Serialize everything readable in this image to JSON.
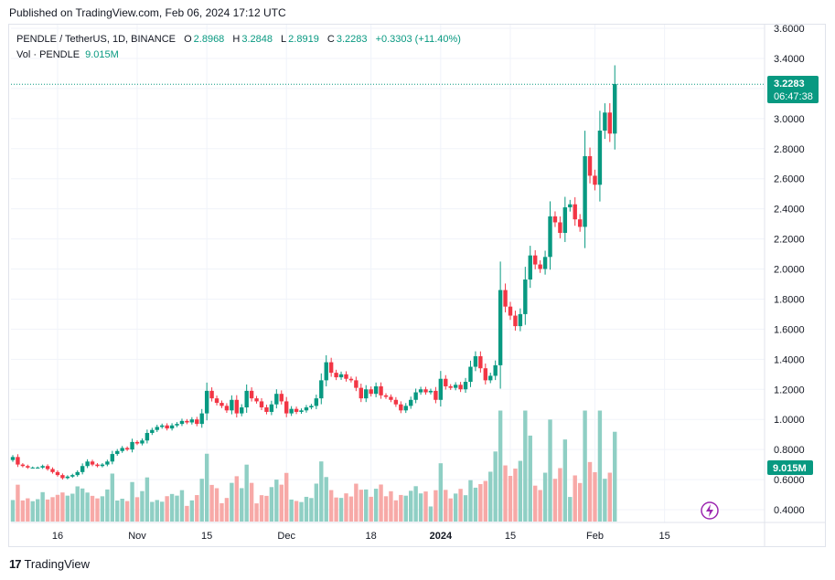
{
  "header": {
    "published": "Published on TradingView.com, Feb 06, 2024 17:12 UTC"
  },
  "legend": {
    "title": "PENDLE / TetherUS, 1D, BINANCE",
    "open_label": "O",
    "open": "2.8968",
    "high_label": "H",
    "high": "3.2848",
    "low_label": "L",
    "low": "2.8919",
    "close_label": "C",
    "close": "3.2283",
    "change": "+0.3303 (+11.40%)",
    "vol_label": "Vol · PENDLE",
    "vol_value": "9.015M"
  },
  "price_badge": {
    "price": "3.2283",
    "countdown": "06:47:38"
  },
  "volume_badge": "9.015M",
  "footer": {
    "brand": "TradingView"
  },
  "colors": {
    "up": "#089981",
    "down": "#f23645",
    "up_vol": "#8fcfc4",
    "down_vol": "#f7a9a7",
    "grid": "#f0f3fa",
    "flash": "#9c27b0"
  },
  "chart_data": {
    "type": "candlestick",
    "title": "PENDLE / TetherUS, 1D, BINANCE",
    "y_axis": {
      "ticks": [
        "3.6000",
        "3.4000",
        "3.2000",
        "3.0000",
        "2.8000",
        "2.6000",
        "2.4000",
        "2.2000",
        "2.0000",
        "1.8000",
        "1.6000",
        "1.4000",
        "1.2000",
        "1.0000",
        "0.8000",
        "0.6000",
        "0.4000"
      ],
      "range": [
        0.4,
        3.6
      ]
    },
    "x_axis": {
      "ticks": [
        {
          "label": "16",
          "day": 9
        },
        {
          "label": "Nov",
          "day": 25
        },
        {
          "label": "15",
          "day": 39
        },
        {
          "label": "Dec",
          "day": 55
        },
        {
          "label": "18",
          "day": 72
        },
        {
          "label": "2024",
          "day": 86
        },
        {
          "label": "15",
          "day": 100
        },
        {
          "label": "Feb",
          "day": 117
        },
        {
          "label": "15",
          "day": 131
        }
      ]
    },
    "closes": [
      0.75,
      0.7,
      0.69,
      0.68,
      0.68,
      0.68,
      0.69,
      0.67,
      0.65,
      0.63,
      0.61,
      0.62,
      0.63,
      0.65,
      0.69,
      0.72,
      0.7,
      0.69,
      0.7,
      0.72,
      0.77,
      0.79,
      0.81,
      0.8,
      0.85,
      0.84,
      0.86,
      0.91,
      0.93,
      0.95,
      0.96,
      0.94,
      0.96,
      0.97,
      0.99,
      0.98,
      1.0,
      0.97,
      1.04,
      1.19,
      1.14,
      1.11,
      1.09,
      1.06,
      1.13,
      1.04,
      1.08,
      1.19,
      1.14,
      1.12,
      1.08,
      1.05,
      1.1,
      1.17,
      1.12,
      1.04,
      1.07,
      1.05,
      1.06,
      1.08,
      1.09,
      1.14,
      1.26,
      1.38,
      1.31,
      1.28,
      1.3,
      1.27,
      1.26,
      1.21,
      1.14,
      1.2,
      1.17,
      1.22,
      1.16,
      1.15,
      1.13,
      1.1,
      1.06,
      1.09,
      1.13,
      1.18,
      1.2,
      1.18,
      1.19,
      1.13,
      1.27,
      1.22,
      1.21,
      1.23,
      1.2,
      1.25,
      1.35,
      1.42,
      1.34,
      1.26,
      1.29,
      1.36,
      1.86,
      1.75,
      1.69,
      1.62,
      1.7,
      1.93,
      2.09,
      2.03,
      2.0,
      2.08,
      2.35,
      2.31,
      2.24,
      2.41,
      2.43,
      2.33,
      2.28,
      2.75,
      2.62,
      2.56,
      2.92,
      3.04,
      2.9,
      3.23
    ],
    "volume_unit": "M",
    "last_volume": 9.015
  }
}
